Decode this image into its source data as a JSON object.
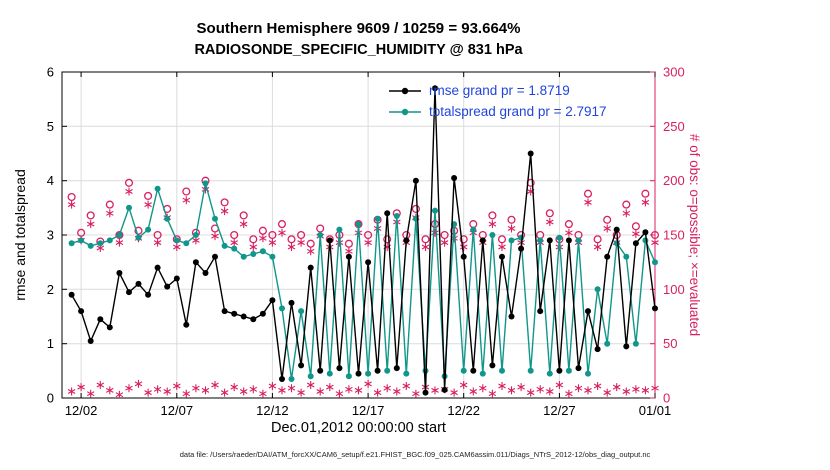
{
  "title": {
    "line1": "Southern Hemisphere 9609 / 10259 = 93.664%",
    "line2": "RADIOSONDE_SPECIFIC_HUMIDITY @ 831 hPa"
  },
  "legend": [
    {
      "label": "rmse grand pr = 1.8719",
      "color": "#000000"
    },
    {
      "label": "totalspread grand pr = 2.7917",
      "color": "#11968b"
    }
  ],
  "axes": {
    "left_label": "rmse and totalspread",
    "right_label": "# of obs: o=possible; ×=evaluated",
    "x_label": "Dec.01,2012 00:00:00 start"
  },
  "caption": "data file: /Users/raeder/DAI/ATM_forcXX/CAM6_setup/f.e21.FHIST_BGC.f09_025.CAM6assim.011/Diags_NTrS_2012-12/obs_diag_output.nc",
  "colors": {
    "rmse": "#000000",
    "totalspread": "#11968b",
    "obs": "#d81f62",
    "legend_text": "#2244dd",
    "grid": "#dcdcdc",
    "axis": "#000000"
  },
  "chart_data": {
    "type": "line",
    "x_start": 0.5,
    "x_step": 0.5,
    "x_range": [
      0,
      31
    ],
    "x_ticks": {
      "positions": [
        1,
        6,
        11,
        16,
        21,
        26,
        31
      ],
      "labels": [
        "12/02",
        "12/07",
        "12/12",
        "12/17",
        "12/22",
        "12/27",
        "01/01"
      ]
    },
    "y_left": {
      "range": [
        0,
        6
      ],
      "ticks": [
        0,
        1,
        2,
        3,
        4,
        5,
        6
      ]
    },
    "y_right": {
      "range": [
        0,
        300
      ],
      "ticks": [
        0,
        50,
        100,
        150,
        200,
        250,
        300
      ]
    },
    "series": [
      {
        "name": "possible-obs",
        "axis": "right",
        "marker": "o",
        "line": false,
        "color": "#d81f62",
        "values": [
          185,
          152,
          168,
          144,
          178,
          150,
          198,
          154,
          186,
          150,
          174,
          146,
          190,
          152,
          200,
          156,
          180,
          150,
          168,
          146,
          154,
          150,
          160,
          146,
          150,
          142,
          156,
          146,
          150,
          142,
          160,
          150,
          164,
          146,
          170,
          150,
          174,
          146,
          160,
          150,
          154,
          146,
          160,
          150,
          168,
          146,
          164,
          150,
          198,
          150,
          170,
          146,
          160,
          150,
          188,
          146,
          164,
          150,
          178,
          158,
          188,
          150
        ]
      },
      {
        "name": "evaluated-obs",
        "axis": "right",
        "marker": "asterisk",
        "line": false,
        "color": "#d81f62",
        "values": [
          178,
          145,
          160,
          138,
          170,
          143,
          190,
          147,
          178,
          143,
          166,
          139,
          182,
          145,
          192,
          149,
          172,
          143,
          160,
          139,
          147,
          143,
          152,
          139,
          143,
          135,
          149,
          139,
          143,
          135,
          152,
          143,
          156,
          139,
          162,
          143,
          166,
          139,
          152,
          143,
          147,
          139,
          152,
          143,
          160,
          139,
          156,
          143,
          190,
          143,
          162,
          139,
          152,
          143,
          180,
          139,
          156,
          143,
          170,
          151,
          180,
          143
        ]
      },
      {
        "name": "evaluated-low-row",
        "axis": "right",
        "marker": "asterisk",
        "line": false,
        "color": "#d81f62",
        "values": [
          6,
          10,
          4,
          12,
          7,
          3,
          9,
          13,
          5,
          8,
          6,
          11,
          4,
          9,
          7,
          12,
          5,
          10,
          6,
          8,
          4,
          11,
          7,
          9,
          5,
          12,
          6,
          10,
          4,
          8,
          7,
          13,
          5,
          9,
          6,
          11,
          4,
          10,
          7,
          8,
          5,
          12,
          6,
          9,
          4,
          11,
          7,
          10,
          5,
          8,
          6,
          12,
          4,
          9,
          7,
          11,
          5,
          10,
          6,
          8,
          7,
          9
        ]
      },
      {
        "name": "totalspread",
        "axis": "left",
        "marker": "dot",
        "line": true,
        "color": "#11968b",
        "values": [
          2.85,
          2.9,
          2.8,
          2.85,
          2.9,
          3.0,
          3.5,
          2.95,
          3.1,
          3.85,
          3.3,
          2.9,
          2.85,
          3.0,
          3.95,
          3.3,
          2.8,
          2.75,
          2.6,
          2.65,
          2.7,
          2.6,
          1.65,
          0.35,
          1.6,
          0.4,
          3.0,
          0.45,
          3.1,
          0.4,
          3.2,
          0.45,
          3.3,
          0.5,
          3.35,
          0.45,
          3.3,
          0.5,
          3.45,
          0.4,
          3.2,
          0.5,
          3.1,
          0.45,
          3.0,
          0.5,
          2.9,
          2.95,
          0.5,
          2.9,
          0.45,
          2.95,
          0.5,
          2.9,
          0.45,
          2.0,
          1.0,
          2.85,
          2.6,
          1.0,
          2.9,
          2.5
        ]
      },
      {
        "name": "rmse",
        "axis": "left",
        "marker": "dot",
        "line": true,
        "color": "#000000",
        "values": [
          1.9,
          1.6,
          1.05,
          1.45,
          1.3,
          2.3,
          1.95,
          2.1,
          1.9,
          2.4,
          2.05,
          2.2,
          1.35,
          2.5,
          2.3,
          2.6,
          1.6,
          1.55,
          1.5,
          1.45,
          1.55,
          1.8,
          0.35,
          1.75,
          0.6,
          2.4,
          0.5,
          2.9,
          0.55,
          2.6,
          0.45,
          2.5,
          0.5,
          3.4,
          0.55,
          2.9,
          4.0,
          0.1,
          5.7,
          0.15,
          4.05,
          2.6,
          0.5,
          2.9,
          0.6,
          2.6,
          1.5,
          2.75,
          4.5,
          1.6,
          2.9,
          0.5,
          2.9,
          0.55,
          1.6,
          0.9,
          2.6,
          3.1,
          0.95,
          2.85,
          3.05,
          1.65
        ]
      }
    ]
  }
}
